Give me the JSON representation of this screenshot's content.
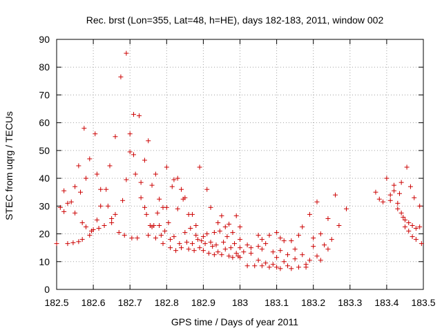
{
  "chart_data": {
    "type": "scatter",
    "title": "Rec. brst (Lon=355, Lat=48, h=HE), days 182-183, 2011, window 002",
    "xlabel": "GPS time / Days of year 2011",
    "ylabel": "STEC from uqrg / TECUs",
    "xlim": [
      182.5,
      183.5
    ],
    "ylim": [
      0,
      90
    ],
    "grid": true,
    "marker": "+",
    "colors": {
      "series": "#cc0000",
      "grid": "#a0a0a0",
      "frame": "#000000"
    },
    "x_ticks": [
      "182.5",
      "182.6",
      "182.7",
      "182.8",
      "182.9",
      "183",
      "183.1",
      "183.2",
      "183.3",
      "183.4",
      "183.5"
    ],
    "y_ticks": [
      "0",
      "10",
      "20",
      "30",
      "40",
      "50",
      "60",
      "70",
      "80",
      "90"
    ],
    "points": [
      [
        182.5,
        16.5
      ],
      [
        182.51,
        29.5
      ],
      [
        182.52,
        35.5
      ],
      [
        182.52,
        28.0
      ],
      [
        182.53,
        16.5
      ],
      [
        182.53,
        31.0
      ],
      [
        182.54,
        31.5
      ],
      [
        182.545,
        16.8
      ],
      [
        182.55,
        37.0
      ],
      [
        182.55,
        27.5
      ],
      [
        182.56,
        17.2
      ],
      [
        182.56,
        44.5
      ],
      [
        182.565,
        35.0
      ],
      [
        182.57,
        24.0
      ],
      [
        182.57,
        18.0
      ],
      [
        182.575,
        58.0
      ],
      [
        182.58,
        40.0
      ],
      [
        182.58,
        22.5
      ],
      [
        182.59,
        19.5
      ],
      [
        182.59,
        47.0
      ],
      [
        182.595,
        21.0
      ],
      [
        182.6,
        21.5
      ],
      [
        182.605,
        56.0
      ],
      [
        182.61,
        25.0
      ],
      [
        182.61,
        41.5
      ],
      [
        182.615,
        22.0
      ],
      [
        182.62,
        36.0
      ],
      [
        182.62,
        30.0
      ],
      [
        182.63,
        23.0
      ],
      [
        182.635,
        36.0
      ],
      [
        182.64,
        30.0
      ],
      [
        182.645,
        44.5
      ],
      [
        182.65,
        24.0
      ],
      [
        182.65,
        25.5
      ],
      [
        182.66,
        55.0
      ],
      [
        182.66,
        27.0
      ],
      [
        182.67,
        20.5
      ],
      [
        182.675,
        76.5
      ],
      [
        182.68,
        32.0
      ],
      [
        182.685,
        19.5
      ],
      [
        182.69,
        85.0
      ],
      [
        182.69,
        39.5
      ],
      [
        182.7,
        56.0
      ],
      [
        182.7,
        49.5
      ],
      [
        182.705,
        18.5
      ],
      [
        182.71,
        63.0
      ],
      [
        182.71,
        48.5
      ],
      [
        182.715,
        41.5
      ],
      [
        182.72,
        18.5
      ],
      [
        182.725,
        62.5
      ],
      [
        182.73,
        38.5
      ],
      [
        182.73,
        33.0
      ],
      [
        182.74,
        29.5
      ],
      [
        182.74,
        46.5
      ],
      [
        182.745,
        27.0
      ],
      [
        182.75,
        19.5
      ],
      [
        182.75,
        53.5
      ],
      [
        182.755,
        23.0
      ],
      [
        182.76,
        37.5
      ],
      [
        182.76,
        22.5
      ],
      [
        182.765,
        23.0
      ],
      [
        182.77,
        18.5
      ],
      [
        182.77,
        41.5
      ],
      [
        182.775,
        27.5
      ],
      [
        182.78,
        32.5
      ],
      [
        182.78,
        23.0
      ],
      [
        182.785,
        19.5
      ],
      [
        182.79,
        29.5
      ],
      [
        182.79,
        16.5
      ],
      [
        182.795,
        21.0
      ],
      [
        182.8,
        44.0
      ],
      [
        182.8,
        29.5
      ],
      [
        182.805,
        24.0
      ],
      [
        182.81,
        18.0
      ],
      [
        182.81,
        15.0
      ],
      [
        182.815,
        37.0
      ],
      [
        182.82,
        39.5
      ],
      [
        182.82,
        19.0
      ],
      [
        182.825,
        14.0
      ],
      [
        182.83,
        40.0
      ],
      [
        182.83,
        29.0
      ],
      [
        182.835,
        16.5
      ],
      [
        182.84,
        36.0
      ],
      [
        182.84,
        15.0
      ],
      [
        182.845,
        32.5
      ],
      [
        182.85,
        33.0
      ],
      [
        182.85,
        20.5
      ],
      [
        182.855,
        17.0
      ],
      [
        182.86,
        27.0
      ],
      [
        182.86,
        14.5
      ],
      [
        182.865,
        22.0
      ],
      [
        182.87,
        27.0
      ],
      [
        182.87,
        16.5
      ],
      [
        182.875,
        14.0
      ],
      [
        182.88,
        23.0
      ],
      [
        182.88,
        19.5
      ],
      [
        182.885,
        18.0
      ],
      [
        182.89,
        44.0
      ],
      [
        182.89,
        15.0
      ],
      [
        182.895,
        17.5
      ],
      [
        182.9,
        19.0
      ],
      [
        182.9,
        14.0
      ],
      [
        182.905,
        16.5
      ],
      [
        182.91,
        36.0
      ],
      [
        182.91,
        20.0
      ],
      [
        182.915,
        13.0
      ],
      [
        182.92,
        29.5
      ],
      [
        182.92,
        17.0
      ],
      [
        182.925,
        15.5
      ],
      [
        182.93,
        20.5
      ],
      [
        182.93,
        12.5
      ],
      [
        182.935,
        16.0
      ],
      [
        182.94,
        24.0
      ],
      [
        182.94,
        13.5
      ],
      [
        182.945,
        21.0
      ],
      [
        182.95,
        26.5
      ],
      [
        182.95,
        12.5
      ],
      [
        182.955,
        17.0
      ],
      [
        182.96,
        22.5
      ],
      [
        182.96,
        14.5
      ],
      [
        182.965,
        19.0
      ],
      [
        182.97,
        23.5
      ],
      [
        182.97,
        12.0
      ],
      [
        182.975,
        15.0
      ],
      [
        182.98,
        20.5
      ],
      [
        182.98,
        11.5
      ],
      [
        182.985,
        16.5
      ],
      [
        182.99,
        26.5
      ],
      [
        182.99,
        13.0
      ],
      [
        182.995,
        12.0
      ],
      [
        183.0,
        18.0
      ],
      [
        183.0,
        22.5
      ],
      [
        183.0,
        15.0
      ],
      [
        183.0,
        11.5
      ],
      [
        183.01,
        13.5
      ],
      [
        183.02,
        16.0
      ],
      [
        183.02,
        8.5
      ],
      [
        183.03,
        15.0
      ],
      [
        183.03,
        13.0
      ],
      [
        183.04,
        8.5
      ],
      [
        183.05,
        19.5
      ],
      [
        183.05,
        15.5
      ],
      [
        183.05,
        10.5
      ],
      [
        183.06,
        18.0
      ],
      [
        183.06,
        14.5
      ],
      [
        183.06,
        8.5
      ],
      [
        183.07,
        9.5
      ],
      [
        183.07,
        16.5
      ],
      [
        183.08,
        8.0
      ],
      [
        183.08,
        19.5
      ],
      [
        183.09,
        13.5
      ],
      [
        183.09,
        9.0
      ],
      [
        183.1,
        20.5
      ],
      [
        183.1,
        11.5
      ],
      [
        183.1,
        8.0
      ],
      [
        183.11,
        18.5
      ],
      [
        183.11,
        14.0
      ],
      [
        183.11,
        7.5
      ],
      [
        183.12,
        10.0
      ],
      [
        183.12,
        17.5
      ],
      [
        183.13,
        8.5
      ],
      [
        183.13,
        12.5
      ],
      [
        183.14,
        17.5
      ],
      [
        183.14,
        7.5
      ],
      [
        183.15,
        11.0
      ],
      [
        183.15,
        14.5
      ],
      [
        183.16,
        8.0
      ],
      [
        183.16,
        19.5
      ],
      [
        183.17,
        12.5
      ],
      [
        183.17,
        22.5
      ],
      [
        183.18,
        8.0
      ],
      [
        183.18,
        9.0
      ],
      [
        183.19,
        10.5
      ],
      [
        183.19,
        27.0
      ],
      [
        183.2,
        15.5
      ],
      [
        183.2,
        18.5
      ],
      [
        183.21,
        31.5
      ],
      [
        183.21,
        12.0
      ],
      [
        183.22,
        20.0
      ],
      [
        183.22,
        10.5
      ],
      [
        183.23,
        16.0
      ],
      [
        183.24,
        25.5
      ],
      [
        183.24,
        14.5
      ],
      [
        183.25,
        18.0
      ],
      [
        183.26,
        34.0
      ],
      [
        183.27,
        23.0
      ],
      [
        183.29,
        29.0
      ],
      [
        183.37,
        35.0
      ],
      [
        183.38,
        32.5
      ],
      [
        183.39,
        31.5
      ],
      [
        183.4,
        40.0
      ],
      [
        183.41,
        32.0
      ],
      [
        183.41,
        34.0
      ],
      [
        183.42,
        37.5
      ],
      [
        183.42,
        35.5
      ],
      [
        183.43,
        31.0
      ],
      [
        183.43,
        29.0
      ],
      [
        183.435,
        34.5
      ],
      [
        183.44,
        38.5
      ],
      [
        183.44,
        27.5
      ],
      [
        183.445,
        26.0
      ],
      [
        183.45,
        25.0
      ],
      [
        183.45,
        22.5
      ],
      [
        183.455,
        44.0
      ],
      [
        183.46,
        24.0
      ],
      [
        183.46,
        21.0
      ],
      [
        183.465,
        37.0
      ],
      [
        183.47,
        23.0
      ],
      [
        183.47,
        19.0
      ],
      [
        183.475,
        33.0
      ],
      [
        183.48,
        22.0
      ],
      [
        183.48,
        18.0
      ],
      [
        183.49,
        30.0
      ],
      [
        183.49,
        22.5
      ],
      [
        183.495,
        16.5
      ]
    ]
  }
}
